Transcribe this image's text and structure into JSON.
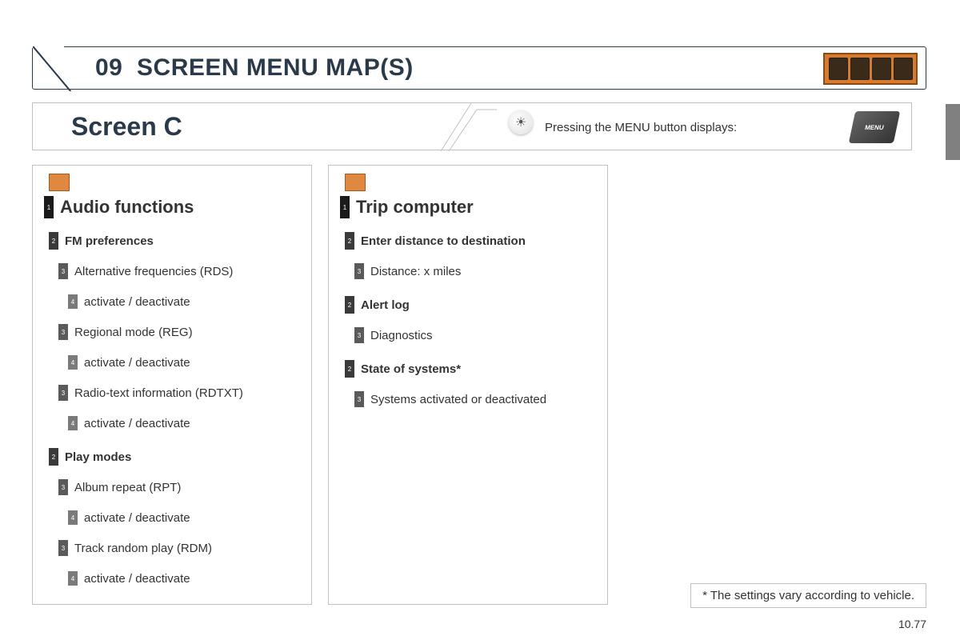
{
  "header": {
    "section_number": "09",
    "title": "SCREEN MENU MAP(S)"
  },
  "subheader": {
    "title": "Screen C",
    "hint": "Pressing the MENU button displays:",
    "menu_button_label": "MENU"
  },
  "columns": [
    {
      "icon": "audio-icon",
      "title": "Audio functions",
      "items": [
        {
          "level": 2,
          "bold": true,
          "text": "FM preferences"
        },
        {
          "level": 3,
          "bold": false,
          "text": "Alternative frequencies (RDS)"
        },
        {
          "level": 4,
          "bold": false,
          "text": "activate / deactivate"
        },
        {
          "level": 3,
          "bold": false,
          "text": "Regional mode (REG)"
        },
        {
          "level": 4,
          "bold": false,
          "text": "activate / deactivate"
        },
        {
          "level": 3,
          "bold": false,
          "text": "Radio-text information (RDTXT)"
        },
        {
          "level": 4,
          "bold": false,
          "text": "activate / deactivate"
        },
        {
          "level": 2,
          "bold": true,
          "text": "Play modes"
        },
        {
          "level": 3,
          "bold": false,
          "text": "Album repeat (RPT)"
        },
        {
          "level": 4,
          "bold": false,
          "text": "activate / deactivate"
        },
        {
          "level": 3,
          "bold": false,
          "text": "Track random play (RDM)"
        },
        {
          "level": 4,
          "bold": false,
          "text": "activate / deactivate"
        }
      ]
    },
    {
      "icon": "trip-icon",
      "title": "Trip computer",
      "items": [
        {
          "level": 2,
          "bold": true,
          "text": "Enter distance to destination"
        },
        {
          "level": 3,
          "bold": false,
          "text": "Distance: x miles"
        },
        {
          "level": 2,
          "bold": true,
          "text": "Alert log"
        },
        {
          "level": 3,
          "bold": false,
          "text": "Diagnostics"
        },
        {
          "level": 2,
          "bold": true,
          "text": "State of systems*"
        },
        {
          "level": 3,
          "bold": false,
          "text": "Systems activated or deactivated"
        }
      ]
    }
  ],
  "footnote": "* The settings vary according to vehicle.",
  "page_number": "10.77",
  "style": {
    "accent_color": "#d87a2e",
    "border_color": "#2a3a4a",
    "card_border": "#c0c0c0",
    "badge_colors": {
      "1": "#1a1a1a",
      "2": "#3a3a3a",
      "3": "#5a5a5a",
      "4": "#7a7a7a"
    }
  }
}
